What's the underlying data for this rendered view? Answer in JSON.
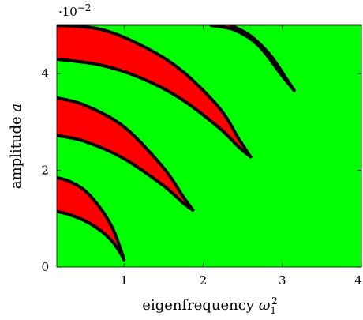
{
  "chart_data": {
    "type": "area",
    "title": "",
    "xlabel": "eigenfrequency ω",
    "xlabel_sub": "1",
    "xlabel_sup": "2",
    "ylabel": "amplitude a",
    "ylabel_prefix": "amplitude ",
    "ylabel_var": "a",
    "y_scale_prefix": "·10",
    "y_scale_exp": "−2",
    "xlim": [
      0.15,
      4.0
    ],
    "ylim": [
      0,
      0.05
    ],
    "xticks": [
      1,
      2,
      3,
      4
    ],
    "xtick_labels": [
      "1",
      "2",
      "3",
      "4"
    ],
    "yticks": [
      0,
      0.02,
      0.04
    ],
    "ytick_labels": [
      "0",
      "2",
      "4"
    ],
    "grid": false,
    "legend": "none",
    "colors": {
      "stable": "#00ff00",
      "unstable": "#ff0000",
      "boundary": "#000000"
    },
    "series": [
      {
        "tip": [
          1.0,
          0.0015
        ],
        "upper": [
          [
            0.15,
            0.0185
          ],
          [
            0.3,
            0.0178
          ],
          [
            0.5,
            0.0159
          ],
          [
            0.7,
            0.0122
          ],
          [
            0.85,
            0.0082
          ],
          [
            0.95,
            0.004
          ],
          [
            1.0,
            0.0015
          ]
        ],
        "lower": [
          [
            0.15,
            0.0115
          ],
          [
            0.3,
            0.0109
          ],
          [
            0.5,
            0.0096
          ],
          [
            0.7,
            0.0076
          ],
          [
            0.85,
            0.0053
          ],
          [
            0.95,
            0.003
          ],
          [
            1.0,
            0.0015
          ]
        ]
      },
      {
        "tip": [
          1.87,
          0.0118
        ],
        "upper": [
          [
            0.15,
            0.035
          ],
          [
            0.5,
            0.0335
          ],
          [
            1.0,
            0.029
          ],
          [
            1.5,
            0.0205
          ],
          [
            1.75,
            0.0145
          ],
          [
            1.87,
            0.0118
          ]
        ],
        "lower": [
          [
            0.15,
            0.0272
          ],
          [
            0.5,
            0.026
          ],
          [
            1.0,
            0.0224
          ],
          [
            1.5,
            0.0168
          ],
          [
            1.75,
            0.0132
          ],
          [
            1.87,
            0.0118
          ]
        ]
      },
      {
        "tip": [
          2.6,
          0.0228
        ],
        "upper": [
          [
            0.15,
            0.05
          ],
          [
            0.7,
            0.0492
          ],
          [
            1.2,
            0.046
          ],
          [
            1.7,
            0.041
          ],
          [
            2.2,
            0.033
          ],
          [
            2.45,
            0.0265
          ],
          [
            2.6,
            0.0228
          ]
        ],
        "lower": [
          [
            0.15,
            0.043
          ],
          [
            0.7,
            0.0418
          ],
          [
            1.2,
            0.0392
          ],
          [
            1.7,
            0.035
          ],
          [
            2.2,
            0.0288
          ],
          [
            2.45,
            0.0248
          ],
          [
            2.6,
            0.0228
          ]
        ]
      },
      {
        "tip": [
          3.15,
          0.0365
        ],
        "upper": [
          [
            2.1,
            0.05
          ],
          [
            2.4,
            0.049
          ],
          [
            2.7,
            0.0458
          ],
          [
            3.0,
            0.0395
          ],
          [
            3.15,
            0.0365
          ]
        ],
        "lower": [
          [
            2.35,
            0.05
          ],
          [
            2.6,
            0.0478
          ],
          [
            2.85,
            0.0438
          ],
          [
            3.05,
            0.039
          ],
          [
            3.15,
            0.0365
          ]
        ]
      }
    ]
  }
}
